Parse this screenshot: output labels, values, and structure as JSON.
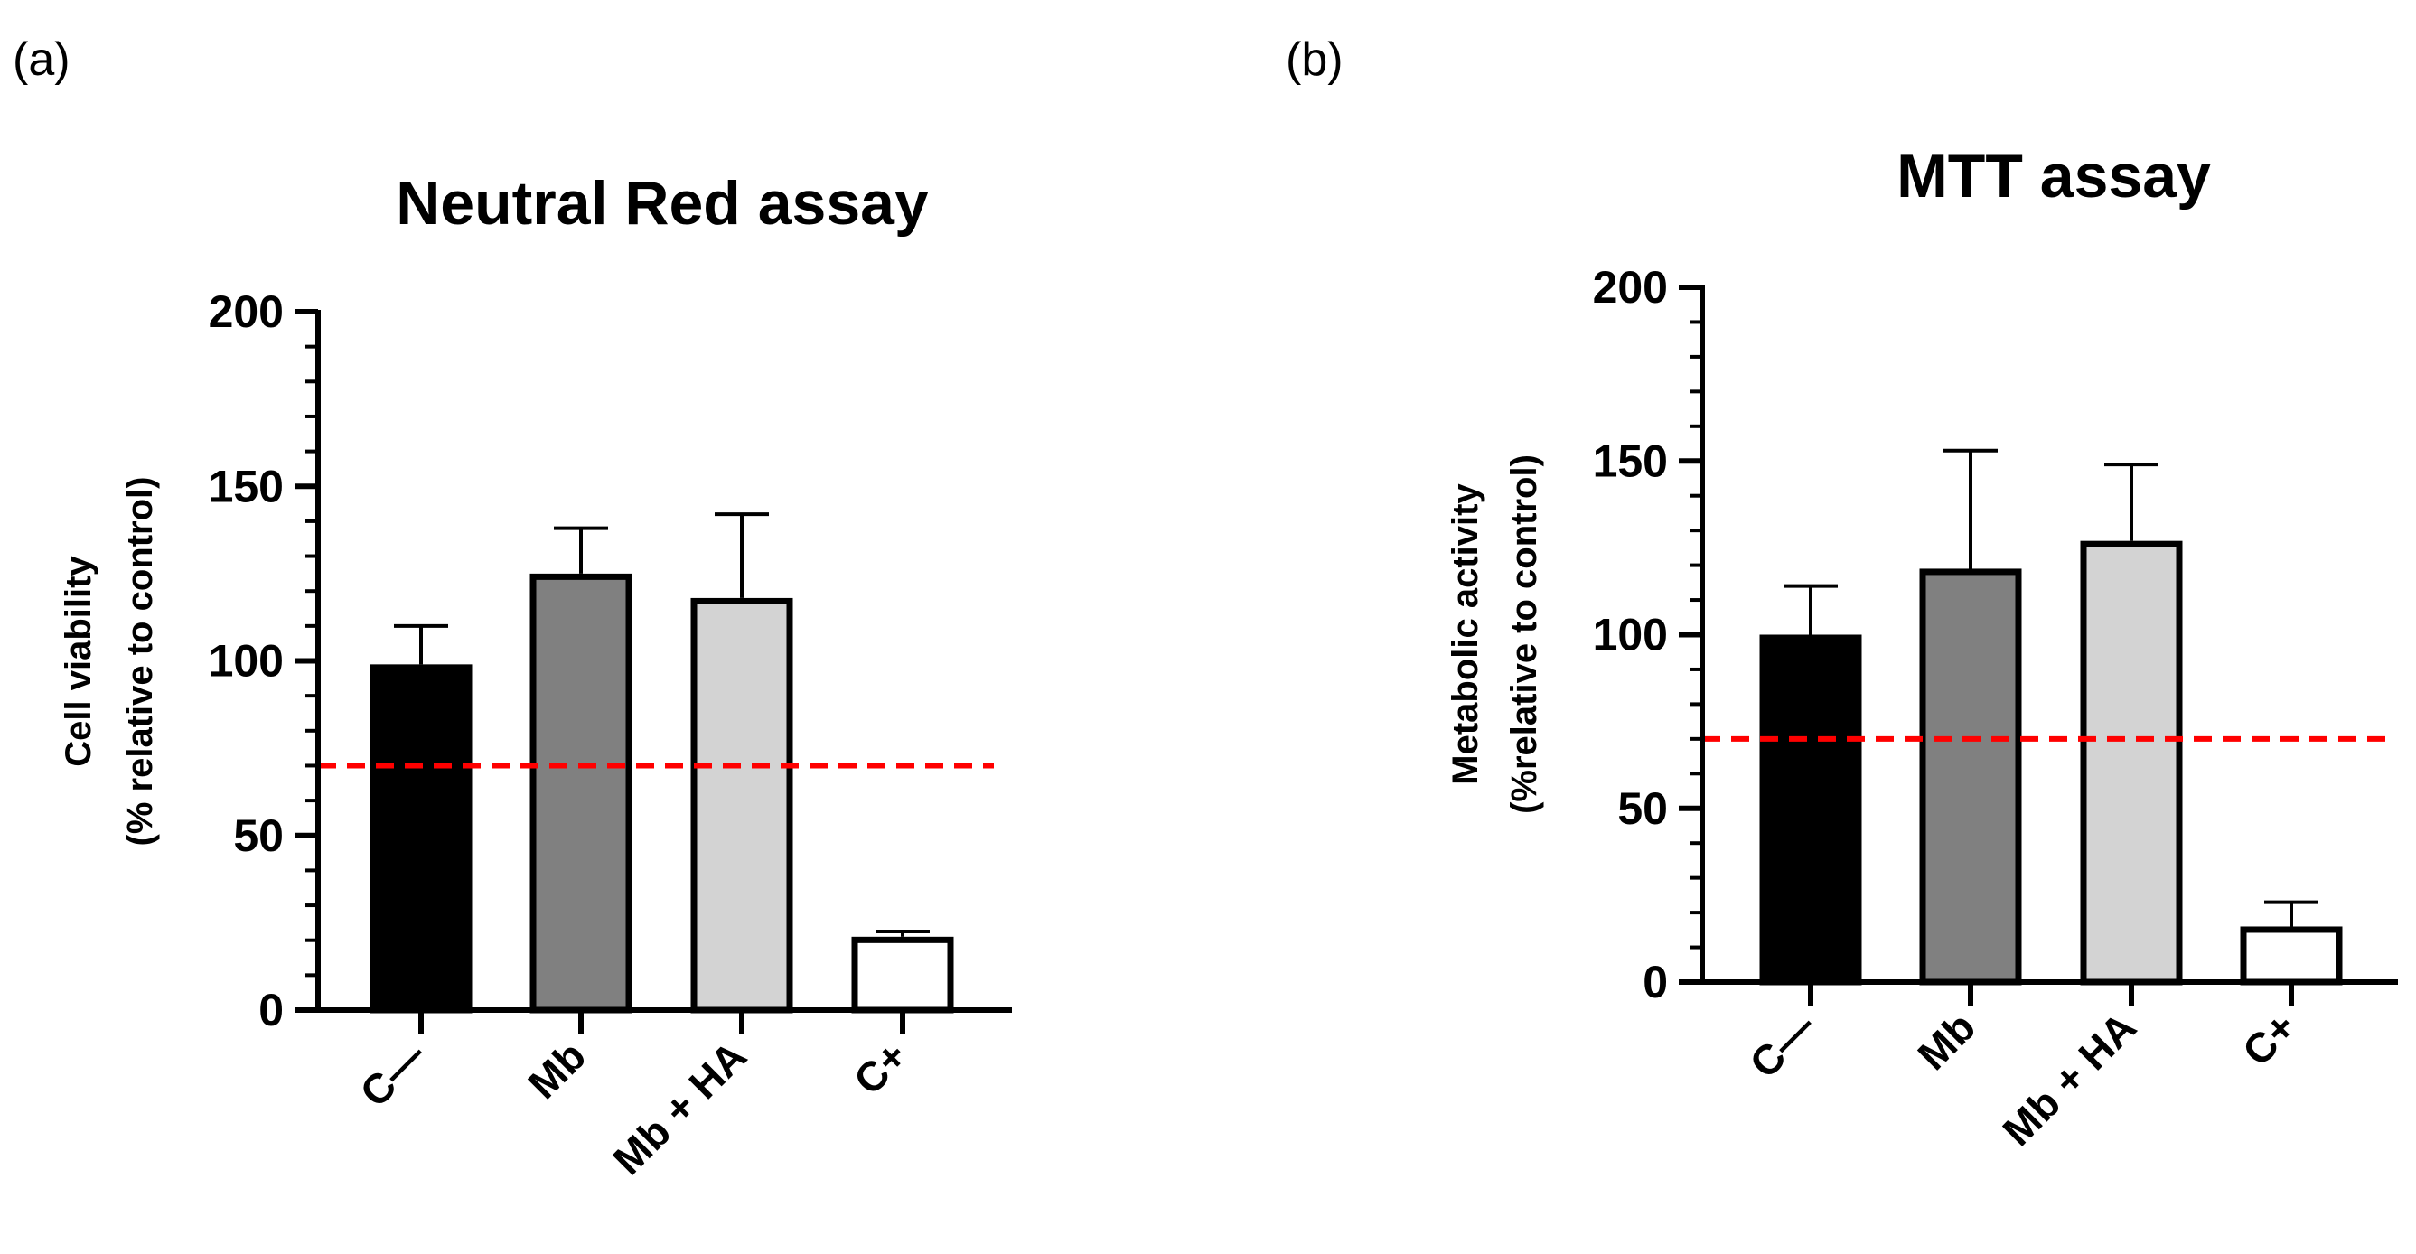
{
  "panels": {
    "a": "(a)",
    "b": "(b)"
  },
  "colors": {
    "threshold": "#ff0000",
    "axis": "#000000"
  },
  "chart_data": [
    {
      "type": "bar",
      "title": "Neutral Red assay",
      "ylabel_lines": [
        "Cell viability",
        "(% relative to control)"
      ],
      "xlabel": "",
      "categories": [
        "C—",
        "Mb",
        "Mb + HA",
        "C+"
      ],
      "values": [
        99,
        125,
        118,
        21
      ],
      "errors": [
        11,
        13,
        24,
        1.5
      ],
      "fills": [
        "#000000",
        "#808080",
        "#d3d3d3",
        "#ffffff"
      ],
      "ylim": [
        0,
        200
      ],
      "yticks": [
        0,
        50,
        100,
        150,
        200
      ],
      "threshold": 70,
      "grid": false
    },
    {
      "type": "bar",
      "title": "MTT assay",
      "ylabel_lines": [
        "Metabolic activity",
        "(%relative to control)"
      ],
      "xlabel": "",
      "categories": [
        "C—",
        "Mb",
        "Mb + HA",
        "C+"
      ],
      "values": [
        100,
        119,
        127,
        16
      ],
      "errors": [
        14,
        34,
        22,
        7
      ],
      "fills": [
        "#000000",
        "#808080",
        "#d3d3d3",
        "#ffffff"
      ],
      "ylim": [
        0,
        200
      ],
      "yticks": [
        0,
        50,
        100,
        150,
        200
      ],
      "threshold": 70,
      "grid": false
    }
  ]
}
